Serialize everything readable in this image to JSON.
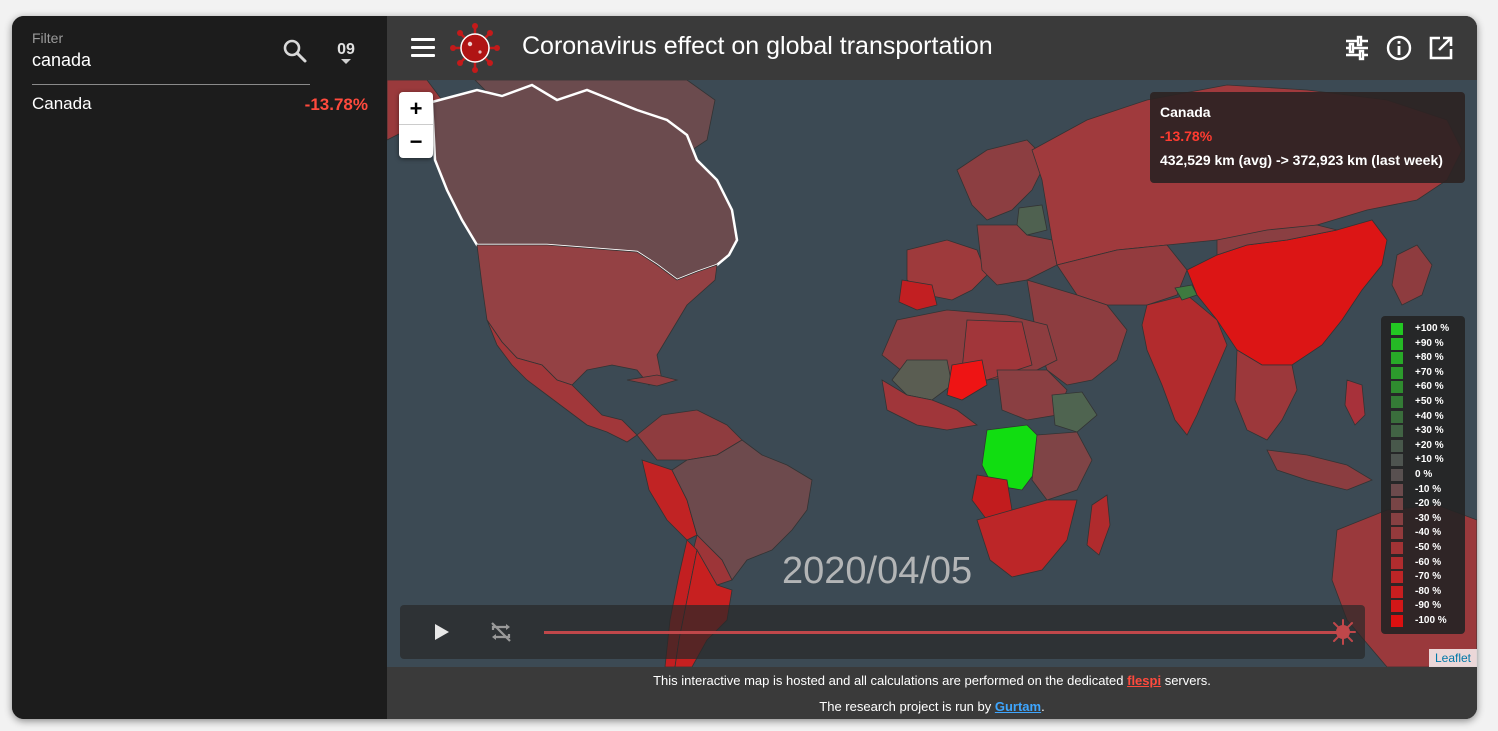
{
  "sidebar": {
    "filter_label": "Filter",
    "filter_value": "canada",
    "sort_label": "09",
    "results": [
      {
        "name": "Canada",
        "value": "-13.78%"
      }
    ]
  },
  "header": {
    "title": "Coronavirus effect on global transportation"
  },
  "map": {
    "zoom_in": "+",
    "zoom_out": "−",
    "date": "2020/04/05",
    "attribution": "Leaflet",
    "tooltip": {
      "name": "Canada",
      "value": "-13.78%",
      "detail": "432,529 km (avg) -> 372,923 km (last week)"
    },
    "legend": [
      {
        "label": "+100 %",
        "color": "#22c822"
      },
      {
        "label": "+90 %",
        "color": "#25b925"
      },
      {
        "label": "+80 %",
        "color": "#28aa28"
      },
      {
        "label": "+70 %",
        "color": "#2c9b2c"
      },
      {
        "label": "+60 %",
        "color": "#2f8c2f"
      },
      {
        "label": "+50 %",
        "color": "#347c36"
      },
      {
        "label": "+40 %",
        "color": "#3a6e3c"
      },
      {
        "label": "+30 %",
        "color": "#416344"
      },
      {
        "label": "+20 %",
        "color": "#48584b"
      },
      {
        "label": "+10 %",
        "color": "#4e5450"
      },
      {
        "label": "0 %",
        "color": "#585050"
      },
      {
        "label": "-10 %",
        "color": "#6c4a4c"
      },
      {
        "label": "-20 %",
        "color": "#784546"
      },
      {
        "label": "-30 %",
        "color": "#864042"
      },
      {
        "label": "-40 %",
        "color": "#943a3c"
      },
      {
        "label": "-50 %",
        "color": "#a23335"
      },
      {
        "label": "-60 %",
        "color": "#b02c2e"
      },
      {
        "label": "-70 %",
        "color": "#be2526"
      },
      {
        "label": "-80 %",
        "color": "#c81e1f"
      },
      {
        "label": "-90 %",
        "color": "#d21718"
      },
      {
        "label": "-100 %",
        "color": "#dc1010"
      }
    ]
  },
  "footer": {
    "line1_before": "This interactive map is hosted and all calculations are performed on the dedicated ",
    "line1_link": "flespi",
    "line1_after": " servers.",
    "line2_before": "The research project is run by ",
    "line2_link": "Gurtam",
    "line2_after": "."
  },
  "colors": {
    "ocean": "#3c4a54",
    "negative_value": "#ff4a3d",
    "link_blue": "#3ea6ff"
  }
}
